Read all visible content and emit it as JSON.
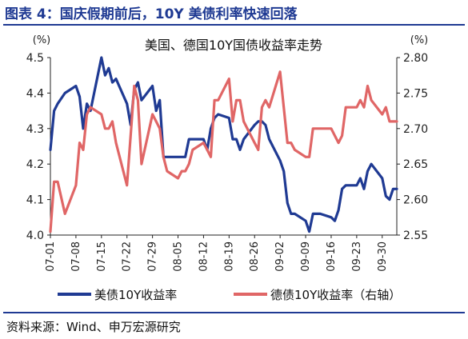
{
  "figure": {
    "title": "图表 4：国庆假期前后，10Y 美债利率快速回落",
    "source": "资料来源：Wind、申万宏源研究"
  },
  "chart_data": {
    "type": "line",
    "title": "美国、德国10Y国债收益率走势",
    "x_tick_labels": [
      "07-01",
      "07-08",
      "07-15",
      "07-22",
      "07-29",
      "08-05",
      "08-12",
      "08-19",
      "08-26",
      "09-02",
      "09-09",
      "09-16",
      "09-23",
      "09-30"
    ],
    "x_range": [
      "07-01",
      "10-04"
    ],
    "y_left": {
      "unit": "(%)",
      "range": [
        4.0,
        4.5
      ],
      "ticks": [
        "4.0",
        "4.1",
        "4.2",
        "4.3",
        "4.4",
        "4.5"
      ]
    },
    "y_right": {
      "unit": "(%)",
      "range": [
        2.55,
        2.8
      ],
      "ticks": [
        "2.55",
        "2.60",
        "2.65",
        "2.70",
        "2.75",
        "2.80"
      ]
    },
    "series": [
      {
        "name": "美债10Y收益率",
        "axis": "left",
        "color": "#1f3a93",
        "points": [
          [
            "07-01",
            4.24
          ],
          [
            "07-02",
            4.35
          ],
          [
            "07-03",
            4.37
          ],
          [
            "07-05",
            4.4
          ],
          [
            "07-08",
            4.42
          ],
          [
            "07-09",
            4.39
          ],
          [
            "07-10",
            4.3
          ],
          [
            "07-11",
            4.37
          ],
          [
            "07-12",
            4.35
          ],
          [
            "07-15",
            4.5
          ],
          [
            "07-16",
            4.45
          ],
          [
            "07-17",
            4.47
          ],
          [
            "07-18",
            4.43
          ],
          [
            "07-19",
            4.44
          ],
          [
            "07-22",
            4.37
          ],
          [
            "07-23",
            4.31
          ],
          [
            "07-24",
            4.41
          ],
          [
            "07-25",
            4.43
          ],
          [
            "07-26",
            4.38
          ],
          [
            "07-29",
            4.42
          ],
          [
            "07-30",
            4.35
          ],
          [
            "07-31",
            4.38
          ],
          [
            "08-01",
            4.22
          ],
          [
            "08-02",
            4.22
          ],
          [
            "08-05",
            4.22
          ],
          [
            "08-06",
            4.22
          ],
          [
            "08-07",
            4.22
          ],
          [
            "08-08",
            4.27
          ],
          [
            "08-09",
            4.27
          ],
          [
            "08-12",
            4.27
          ],
          [
            "08-13",
            4.24
          ],
          [
            "08-14",
            4.3
          ],
          [
            "08-15",
            4.33
          ],
          [
            "08-16",
            4.34
          ],
          [
            "08-19",
            4.33
          ],
          [
            "08-20",
            4.27
          ],
          [
            "08-21",
            4.27
          ],
          [
            "08-22",
            4.24
          ],
          [
            "08-23",
            4.27
          ],
          [
            "08-26",
            4.31
          ],
          [
            "08-27",
            4.32
          ],
          [
            "08-28",
            4.32
          ],
          [
            "08-29",
            4.31
          ],
          [
            "08-30",
            4.27
          ],
          [
            "09-02",
            4.21
          ],
          [
            "09-03",
            4.18
          ],
          [
            "09-04",
            4.09
          ],
          [
            "09-05",
            4.06
          ],
          [
            "09-06",
            4.06
          ],
          [
            "09-09",
            4.04
          ],
          [
            "09-10",
            4.01
          ],
          [
            "09-11",
            4.06
          ],
          [
            "09-12",
            4.06
          ],
          [
            "09-13",
            4.06
          ],
          [
            "09-16",
            4.05
          ],
          [
            "09-17",
            4.04
          ],
          [
            "09-18",
            4.07
          ],
          [
            "09-19",
            4.13
          ],
          [
            "09-20",
            4.14
          ],
          [
            "09-23",
            4.14
          ],
          [
            "09-24",
            4.16
          ],
          [
            "09-25",
            4.13
          ],
          [
            "09-26",
            4.18
          ],
          [
            "09-27",
            4.2
          ],
          [
            "09-30",
            4.16
          ],
          [
            "10-01",
            4.11
          ],
          [
            "10-02",
            4.1
          ],
          [
            "10-03",
            4.13
          ],
          [
            "10-04",
            4.13
          ]
        ]
      },
      {
        "name": "德债10Y收益率（右轴）",
        "axis": "right",
        "color": "#e06666",
        "points": [
          [
            "07-01",
            2.555
          ],
          [
            "07-02",
            2.625
          ],
          [
            "07-03",
            2.625
          ],
          [
            "07-05",
            2.58
          ],
          [
            "07-08",
            2.62
          ],
          [
            "07-09",
            2.68
          ],
          [
            "07-10",
            2.67
          ],
          [
            "07-11",
            2.72
          ],
          [
            "07-12",
            2.73
          ],
          [
            "07-15",
            2.72
          ],
          [
            "07-16",
            2.7
          ],
          [
            "07-17",
            2.7
          ],
          [
            "07-18",
            2.71
          ],
          [
            "07-19",
            2.68
          ],
          [
            "07-22",
            2.62
          ],
          [
            "07-23",
            2.69
          ],
          [
            "07-24",
            2.76
          ],
          [
            "07-25",
            2.74
          ],
          [
            "07-26",
            2.65
          ],
          [
            "07-29",
            2.72
          ],
          [
            "07-30",
            2.71
          ],
          [
            "07-31",
            2.7
          ],
          [
            "08-01",
            2.66
          ],
          [
            "08-02",
            2.64
          ],
          [
            "08-05",
            2.63
          ],
          [
            "08-06",
            2.64
          ],
          [
            "08-07",
            2.64
          ],
          [
            "08-08",
            2.65
          ],
          [
            "08-09",
            2.67
          ],
          [
            "08-12",
            2.68
          ],
          [
            "08-13",
            2.67
          ],
          [
            "08-14",
            2.66
          ],
          [
            "08-15",
            2.74
          ],
          [
            "08-16",
            2.74
          ],
          [
            "08-19",
            2.77
          ],
          [
            "08-20",
            2.71
          ],
          [
            "08-21",
            2.74
          ],
          [
            "08-22",
            2.74
          ],
          [
            "08-23",
            2.71
          ],
          [
            "08-26",
            2.68
          ],
          [
            "08-27",
            2.67
          ],
          [
            "08-28",
            2.73
          ],
          [
            "08-29",
            2.74
          ],
          [
            "08-30",
            2.73
          ],
          [
            "09-02",
            2.78
          ],
          [
            "09-03",
            2.73
          ],
          [
            "09-04",
            2.68
          ],
          [
            "09-05",
            2.68
          ],
          [
            "09-06",
            2.67
          ],
          [
            "09-09",
            2.66
          ],
          [
            "09-10",
            2.66
          ],
          [
            "09-11",
            2.7
          ],
          [
            "09-12",
            2.7
          ],
          [
            "09-13",
            2.7
          ],
          [
            "09-16",
            2.7
          ],
          [
            "09-17",
            2.69
          ],
          [
            "09-18",
            2.68
          ],
          [
            "09-19",
            2.69
          ],
          [
            "09-20",
            2.73
          ],
          [
            "09-23",
            2.73
          ],
          [
            "09-24",
            2.74
          ],
          [
            "09-25",
            2.73
          ],
          [
            "09-26",
            2.76
          ],
          [
            "09-27",
            2.74
          ],
          [
            "09-30",
            2.72
          ],
          [
            "10-01",
            2.73
          ],
          [
            "10-02",
            2.71
          ],
          [
            "10-03",
            2.71
          ],
          [
            "10-04",
            2.71
          ]
        ]
      }
    ],
    "legend_placement": "bottom",
    "grid": false
  }
}
